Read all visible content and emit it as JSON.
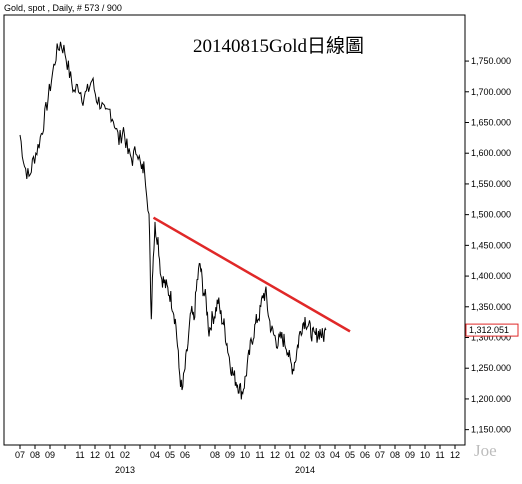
{
  "chart_data": {
    "type": "line",
    "header": "Gold, spot , Daily, # 573 / 900",
    "title": "20140815Gold日線圖",
    "watermark": "Joe",
    "ylim": [
      1125,
      1825
    ],
    "y_ticks": [
      1150,
      1200,
      1250,
      1300,
      1350,
      1400,
      1450,
      1500,
      1550,
      1600,
      1650,
      1700,
      1750
    ],
    "y_tick_labels": [
      "1,150.000",
      "1,200.000",
      "1,250.000",
      "1,300.000",
      "1,350.000",
      "1,400.000",
      "1,450.000",
      "1,500.000",
      "1,550.000",
      "1,600.000",
      "1,650.000",
      "1,700.000",
      "1,750.000"
    ],
    "x_months": [
      "07",
      "08",
      "09",
      "10",
      "11",
      "12",
      "01",
      "02",
      "03",
      "04",
      "05",
      "06",
      "07",
      "08",
      "09",
      "10",
      "11",
      "12",
      "01",
      "02",
      "03",
      "04",
      "05",
      "06",
      "07",
      "08",
      "09",
      "10",
      "11",
      "12"
    ],
    "x_tick_labels": [
      "07",
      "08",
      "09",
      "11",
      "12",
      "01",
      "02",
      "04",
      "05",
      "06",
      "08",
      "09",
      "10",
      "11",
      "12",
      "01",
      "02",
      "03",
      "04",
      "05",
      "06",
      "07",
      "08",
      "09",
      "10",
      "11",
      "12"
    ],
    "year_labels": [
      {
        "label": "2013",
        "month_index": 7
      },
      {
        "label": "2014",
        "month_index": 19
      }
    ],
    "last_price_label": "1,312.051",
    "last_price": 1312.051,
    "price_series": {
      "name": "",
      "points": [
        [
          0.0,
          1630
        ],
        [
          0.3,
          1580
        ],
        [
          0.6,
          1560
        ],
        [
          0.9,
          1590
        ],
        [
          1.2,
          1610
        ],
        [
          1.5,
          1640
        ],
        [
          1.8,
          1680
        ],
        [
          2.1,
          1720
        ],
        [
          2.4,
          1760
        ],
        [
          2.7,
          1780
        ],
        [
          3.0,
          1765
        ],
        [
          3.3,
          1730
        ],
        [
          3.6,
          1700
        ],
        [
          3.9,
          1710
        ],
        [
          4.2,
          1690
        ],
        [
          4.5,
          1700
        ],
        [
          4.8,
          1720
        ],
        [
          5.1,
          1690
        ],
        [
          5.4,
          1680
        ],
        [
          5.7,
          1660
        ],
        [
          6.0,
          1670
        ],
        [
          6.3,
          1650
        ],
        [
          6.6,
          1620
        ],
        [
          6.9,
          1640
        ],
        [
          7.2,
          1600
        ],
        [
          7.5,
          1590
        ],
        [
          7.8,
          1610
        ],
        [
          8.1,
          1570
        ],
        [
          8.3,
          1580
        ],
        [
          8.6,
          1500
        ],
        [
          8.75,
          1330
        ],
        [
          8.85,
          1420
        ],
        [
          9.0,
          1480
        ],
        [
          9.2,
          1460
        ],
        [
          9.4,
          1400
        ],
        [
          9.6,
          1390
        ],
        [
          9.8,
          1380
        ],
        [
          10.0,
          1370
        ],
        [
          10.2,
          1350
        ],
        [
          10.4,
          1320
        ],
        [
          10.6,
          1250
        ],
        [
          10.8,
          1210
        ],
        [
          11.0,
          1250
        ],
        [
          11.2,
          1290
        ],
        [
          11.4,
          1340
        ],
        [
          11.6,
          1330
        ],
        [
          11.8,
          1390
        ],
        [
          12.0,
          1420
        ],
        [
          12.2,
          1380
        ],
        [
          12.4,
          1360
        ],
        [
          12.6,
          1310
        ],
        [
          12.8,
          1330
        ],
        [
          13.0,
          1340
        ],
        [
          13.2,
          1360
        ],
        [
          13.4,
          1335
        ],
        [
          13.6,
          1320
        ],
        [
          13.8,
          1290
        ],
        [
          14.0,
          1260
        ],
        [
          14.2,
          1240
        ],
        [
          14.4,
          1230
        ],
        [
          14.6,
          1220
        ],
        [
          14.8,
          1210
        ],
        [
          15.0,
          1230
        ],
        [
          15.2,
          1260
        ],
        [
          15.4,
          1290
        ],
        [
          15.6,
          1310
        ],
        [
          15.8,
          1330
        ],
        [
          16.0,
          1340
        ],
        [
          16.2,
          1370
        ],
        [
          16.4,
          1370
        ],
        [
          16.6,
          1330
        ],
        [
          16.8,
          1310
        ],
        [
          17.0,
          1300
        ],
        [
          17.2,
          1290
        ],
        [
          17.4,
          1300
        ],
        [
          17.6,
          1295
        ],
        [
          17.8,
          1285
        ],
        [
          18.0,
          1260
        ],
        [
          18.2,
          1250
        ],
        [
          18.4,
          1270
        ],
        [
          18.6,
          1300
        ],
        [
          18.8,
          1320
        ],
        [
          19.0,
          1330
        ],
        [
          19.2,
          1320
        ],
        [
          19.4,
          1310
        ],
        [
          19.6,
          1300
        ],
        [
          19.8,
          1305
        ],
        [
          20.0,
          1310
        ],
        [
          20.2,
          1300
        ],
        [
          20.4,
          1312
        ]
      ]
    },
    "trendline": {
      "color": "#e02828",
      "points": [
        [
          8.9,
          1495
        ],
        [
          22.0,
          1310
        ]
      ]
    },
    "colors": {
      "price": "#000000",
      "trendline": "#e02828",
      "last_label_border": "#e02828"
    }
  }
}
